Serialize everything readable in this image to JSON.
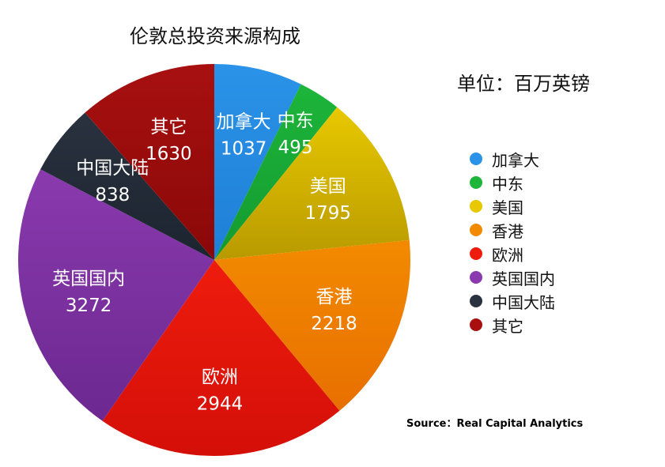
{
  "chart_data": {
    "type": "pie",
    "title": "伦敦总投资来源构成",
    "unit": "单位：百万英镑",
    "source": "Source：Real Capital Analytics",
    "legend_position": "right",
    "categories": [
      "加拿大",
      "中东",
      "美国",
      "香港",
      "欧洲",
      "英国国内",
      "中国大陆",
      "其它"
    ],
    "values": [
      1037,
      495,
      1795,
      2218,
      2944,
      3272,
      838,
      1630
    ],
    "value_labels": [
      "1037",
      "495",
      "1795",
      "2218",
      "2944",
      "3272",
      "838",
      "1630"
    ],
    "colors": [
      "#2a93e8",
      "#1db53a",
      "#e8c800",
      "#f28a00",
      "#ee1c0d",
      "#8a3aae",
      "#2a323f",
      "#a81010"
    ],
    "colors_dark": [
      "#1f7fd6",
      "#149a30",
      "#b89a00",
      "#e86f00",
      "#d40f08",
      "#6c2890",
      "#1c2430",
      "#8a0808"
    ]
  }
}
